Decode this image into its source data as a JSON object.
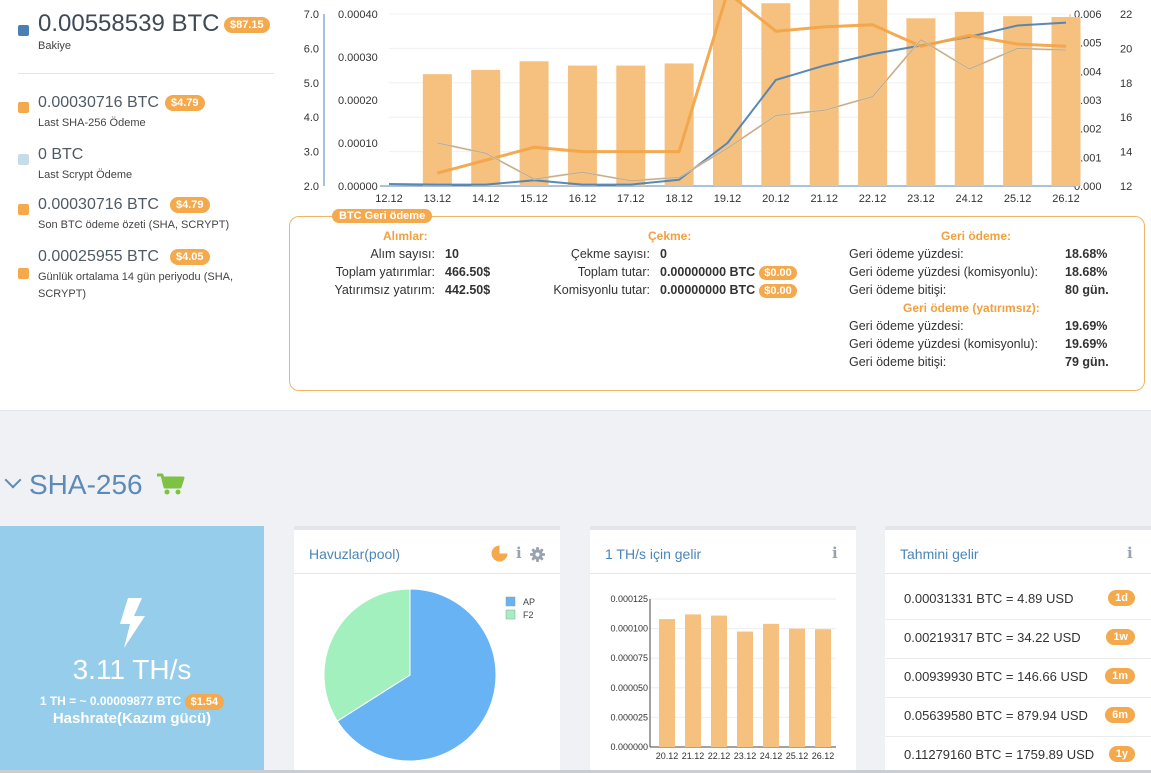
{
  "balances": {
    "main": {
      "amount": "0.00558539 BTC",
      "usd": "$87.15",
      "label": "Bakiye",
      "color": "#4b7fb3"
    },
    "items": [
      {
        "amount": "0.00030716 BTC",
        "usd": "$4.79",
        "label": "Last SHA-256 Ödeme",
        "color": "#f3a94c"
      },
      {
        "amount": "0 BTC",
        "usd": "",
        "label": "Last Scrypt Ödeme",
        "color": "#c5dde9"
      },
      {
        "amount": "0.00030716 BTC",
        "usd": "$4.79",
        "label": "Son BTC ödeme özeti (SHA, SCRYPT)",
        "color": "#f3a94c"
      },
      {
        "amount": "0.00025955 BTC",
        "usd": "$4.05",
        "label": "Günlük ortalama 14 gün periyodu (SHA, SCRYPT)",
        "color": "#f3a94c"
      }
    ]
  },
  "chart_data": [
    {
      "type": "bar",
      "categories": [
        "12.12",
        "13.12",
        "14.12",
        "15.12",
        "16.12",
        "17.12",
        "18.12",
        "19.12",
        "20.12",
        "21.12",
        "22.12",
        "23.12",
        "24.12",
        "25.12",
        "26.12"
      ],
      "axis_left_outer": {
        "ticks": [
          "7.0",
          "6.0",
          "5.0",
          "4.0",
          "3.0",
          "2.0"
        ],
        "range": [
          2.0,
          7.0
        ]
      },
      "axis_left_inner": {
        "ticks": [
          "0.00040",
          "0.00030",
          "0.00020",
          "0.00010",
          "0.00000"
        ],
        "range": [
          0.0,
          0.0004
        ]
      },
      "axis_right_inner": {
        "ticks": [
          "0.006",
          "0.005",
          "0.004",
          "0.003",
          "0.002",
          "0.001",
          "0.000"
        ],
        "range": [
          0.0,
          0.006
        ]
      },
      "axis_right_outer": {
        "ticks": [
          "22",
          "20",
          "18",
          "16",
          "14",
          "12"
        ],
        "range": [
          12,
          22
        ]
      },
      "series": [
        {
          "kind": "bar",
          "axis": "left_inner",
          "color": "#f6c07e",
          "values": [
            null,
            0.00026,
            0.00027,
            0.00029,
            0.00028,
            0.00028,
            0.000285,
            0.00048,
            0.000425,
            0.000435,
            0.000433,
            0.00039,
            0.000405,
            0.000395,
            0.000393
          ]
        },
        {
          "kind": "line",
          "axis": "right_inner",
          "color": "#4f83b5",
          "width": 2,
          "values": [
            7e-05,
            5e-05,
            5e-05,
            0.0002,
            5e-05,
            5e-05,
            0.00022,
            0.0015,
            0.0037,
            0.0042,
            0.0046,
            0.0049,
            0.0052,
            0.0056,
            0.0057
          ]
        },
        {
          "kind": "line",
          "axis": "left_inner",
          "color": "#f2a54a",
          "width": 3,
          "values": [
            null,
            3e-05,
            6e-05,
            9e-05,
            8e-05,
            8e-05,
            8e-05,
            0.00045,
            0.00036,
            0.00037,
            0.000375,
            0.000325,
            0.00035,
            0.00033,
            0.000325
          ]
        },
        {
          "kind": "line",
          "axis": "right_outer",
          "color": "#e7cfa8",
          "width": 2,
          "values": [
            null,
            14.5,
            13.9,
            12.4,
            12.8,
            12.3,
            12.5,
            14.2,
            16.1,
            16.4,
            17.2,
            20.5,
            18.8,
            20.0,
            19.9
          ]
        },
        {
          "kind": "line",
          "axis": "right_outer",
          "color": "#b9a68a",
          "width": 1,
          "values": [
            null,
            14.5,
            13.9,
            12.4,
            12.8,
            12.3,
            12.5,
            14.2,
            16.1,
            16.4,
            17.2,
            20.5,
            18.8,
            20.0,
            19.9
          ]
        }
      ]
    },
    {
      "type": "pie",
      "title": "",
      "labels": [
        "AP",
        "F2"
      ],
      "values": [
        66,
        34
      ],
      "colors": [
        "#67b3f3",
        "#a1f0bd"
      ]
    },
    {
      "type": "bar",
      "categories": [
        "20.12",
        "21.12",
        "22.12",
        "23.12",
        "24.12",
        "25.12",
        "26.12"
      ],
      "values": [
        0.000108,
        0.000112,
        0.000111,
        9.75e-05,
        0.000104,
        0.0001,
        9.95e-05
      ],
      "ylim": [
        0,
        0.000125
      ],
      "yticks": [
        "0.000125",
        "0.000100",
        "0.000075",
        "0.000050",
        "0.000025",
        "0.000000"
      ],
      "color": "#f6c07e"
    }
  ],
  "refund": {
    "title": "BTC Geri ödeme",
    "purchases": {
      "header": "Alımlar:",
      "rows": [
        {
          "k": "Alım sayısı:",
          "v": "10"
        },
        {
          "k": "Toplam yatırımlar:",
          "v": "466.50$"
        },
        {
          "k": "Yatırımsız yatırım:",
          "v": "442.50$"
        }
      ]
    },
    "withdraw": {
      "header": "Çekme:",
      "rows": [
        {
          "k": "Çekme sayısı:",
          "v": "0",
          "usd": ""
        },
        {
          "k": "Toplam tutar:",
          "v": "0.00000000 BTC",
          "usd": "$0.00"
        },
        {
          "k": "Komisyonlu tutar:",
          "v": "0.00000000 BTC",
          "usd": "$0.00"
        }
      ]
    },
    "payback": {
      "header": "Geri ödeme:",
      "rows": [
        {
          "k": "Geri ödeme yüzdesi:",
          "v": "18.68%"
        },
        {
          "k": "Geri ödeme yüzdesi (komisyonlu):",
          "v": "18.68%"
        },
        {
          "k": "Geri ödeme bitişi:",
          "v": "80 gün."
        }
      ],
      "header2": "Geri ödeme (yatırımsız):",
      "rows2": [
        {
          "k": "Geri ödeme yüzdesi:",
          "v": "19.69%"
        },
        {
          "k": "Geri ödeme yüzdesi (komisyonlu):",
          "v": "19.69%"
        },
        {
          "k": "Geri ödeme bitişi:",
          "v": "79 gün."
        }
      ]
    }
  },
  "sha": {
    "title": "SHA-256",
    "hashrate": {
      "rate": "3.11 TH/s",
      "per_th": "1 TH = ~ 0.00009877 BTC",
      "per_th_usd": "$1.54",
      "label": "Hashrate(Kazım gücü)"
    },
    "pools": {
      "title": "Havuzlar(pool)",
      "info": "i"
    },
    "income": {
      "title": "1 TH/s için gelir",
      "info": "i"
    },
    "estimate": {
      "title": "Tahmini gelir",
      "info": "i",
      "rows": [
        {
          "text": "0.00031331 BTC = 4.89 USD",
          "period": "1d"
        },
        {
          "text": "0.00219317 BTC = 34.22 USD",
          "period": "1w"
        },
        {
          "text": "0.00939930 BTC = 146.66 USD",
          "period": "1m"
        },
        {
          "text": "0.05639580 BTC = 879.94 USD",
          "period": "6m"
        },
        {
          "text": "0.11279160 BTC = 1759.89 USD",
          "period": "1y"
        }
      ]
    }
  }
}
